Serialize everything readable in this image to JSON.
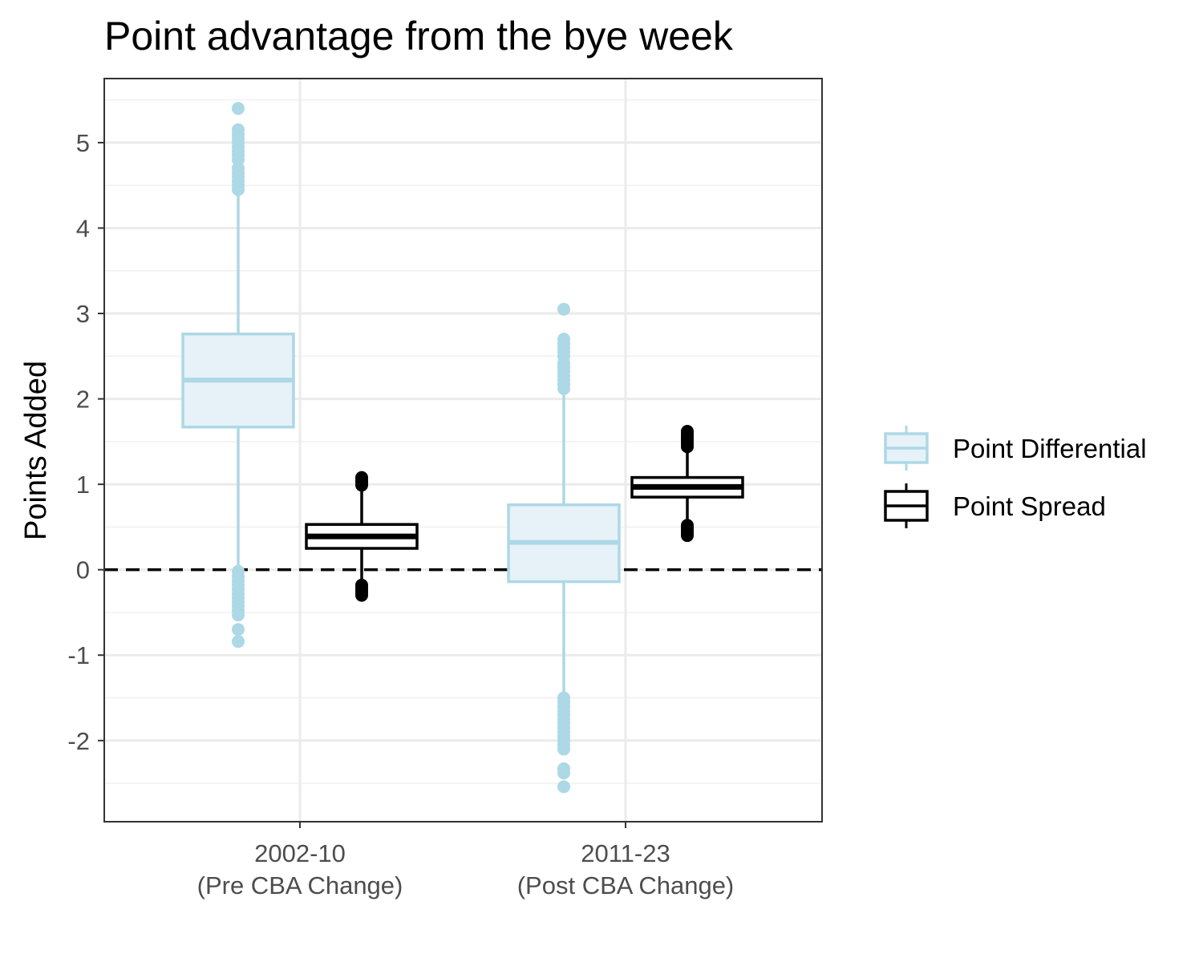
{
  "chart_data": {
    "type": "box",
    "title": "Point advantage from the bye week",
    "ylabel": "Points Added",
    "xlabel": "",
    "ylim": [
      -2.95,
      5.75
    ],
    "yticks": [
      -2,
      -1,
      0,
      1,
      2,
      3,
      4,
      5
    ],
    "ytick_labels": [
      "-2",
      "-1",
      "0",
      "1",
      "2",
      "3",
      "4",
      "5"
    ],
    "reference_line": {
      "y": 0,
      "style": "dashed",
      "color": "#000000"
    },
    "grid": true,
    "categories": [
      {
        "line1": "2002-10",
        "line2": "(Pre CBA Change)"
      },
      {
        "line1": "2011-23",
        "line2": "(Post CBA Change)"
      }
    ],
    "legend_placement": "right",
    "series": [
      {
        "name": "Point Differential",
        "color": "#add8e6",
        "fill": "#e6f2f8",
        "boxes": [
          {
            "q1": 1.67,
            "median": 2.22,
            "q3": 2.76,
            "whisker_low": 0.02,
            "whisker_high": 4.4,
            "outliers": [
              5.4,
              5.15,
              5.1,
              5.05,
              5.0,
              4.95,
              4.9,
              4.85,
              4.8,
              4.7,
              4.65,
              4.6,
              4.55,
              4.5,
              4.45,
              -0.02,
              -0.08,
              -0.13,
              -0.18,
              -0.23,
              -0.28,
              -0.33,
              -0.38,
              -0.43,
              -0.48,
              -0.53,
              -0.7,
              -0.84
            ]
          },
          {
            "q1": -0.14,
            "median": 0.32,
            "q3": 0.76,
            "whisker_low": -1.47,
            "whisker_high": 2.1,
            "outliers": [
              3.05,
              2.7,
              2.65,
              2.6,
              2.55,
              2.5,
              2.42,
              2.37,
              2.32,
              2.27,
              2.22,
              2.17,
              2.12,
              -1.5,
              -1.55,
              -1.6,
              -1.65,
              -1.7,
              -1.75,
              -1.8,
              -1.85,
              -1.9,
              -1.95,
              -2.0,
              -2.05,
              -2.1,
              -2.33,
              -2.38,
              -2.54
            ]
          }
        ]
      },
      {
        "name": "Point Spread",
        "color": "#000000",
        "fill": "#ffffff",
        "boxes": [
          {
            "q1": 0.25,
            "median": 0.39,
            "q3": 0.53,
            "whisker_low": -0.15,
            "whisker_high": 0.97,
            "outliers": [
              1.08,
              1.05,
              1.02,
              0.99,
              -0.18,
              -0.21,
              -0.24,
              -0.27,
              -0.3
            ]
          },
          {
            "q1": 0.85,
            "median": 0.97,
            "q3": 1.08,
            "whisker_low": 0.53,
            "whisker_high": 1.4,
            "outliers": [
              1.62,
              1.59,
              1.56,
              1.53,
              1.5,
              1.47,
              1.44,
              0.52,
              0.49,
              0.46,
              0.43,
              0.4
            ]
          }
        ]
      }
    ]
  }
}
